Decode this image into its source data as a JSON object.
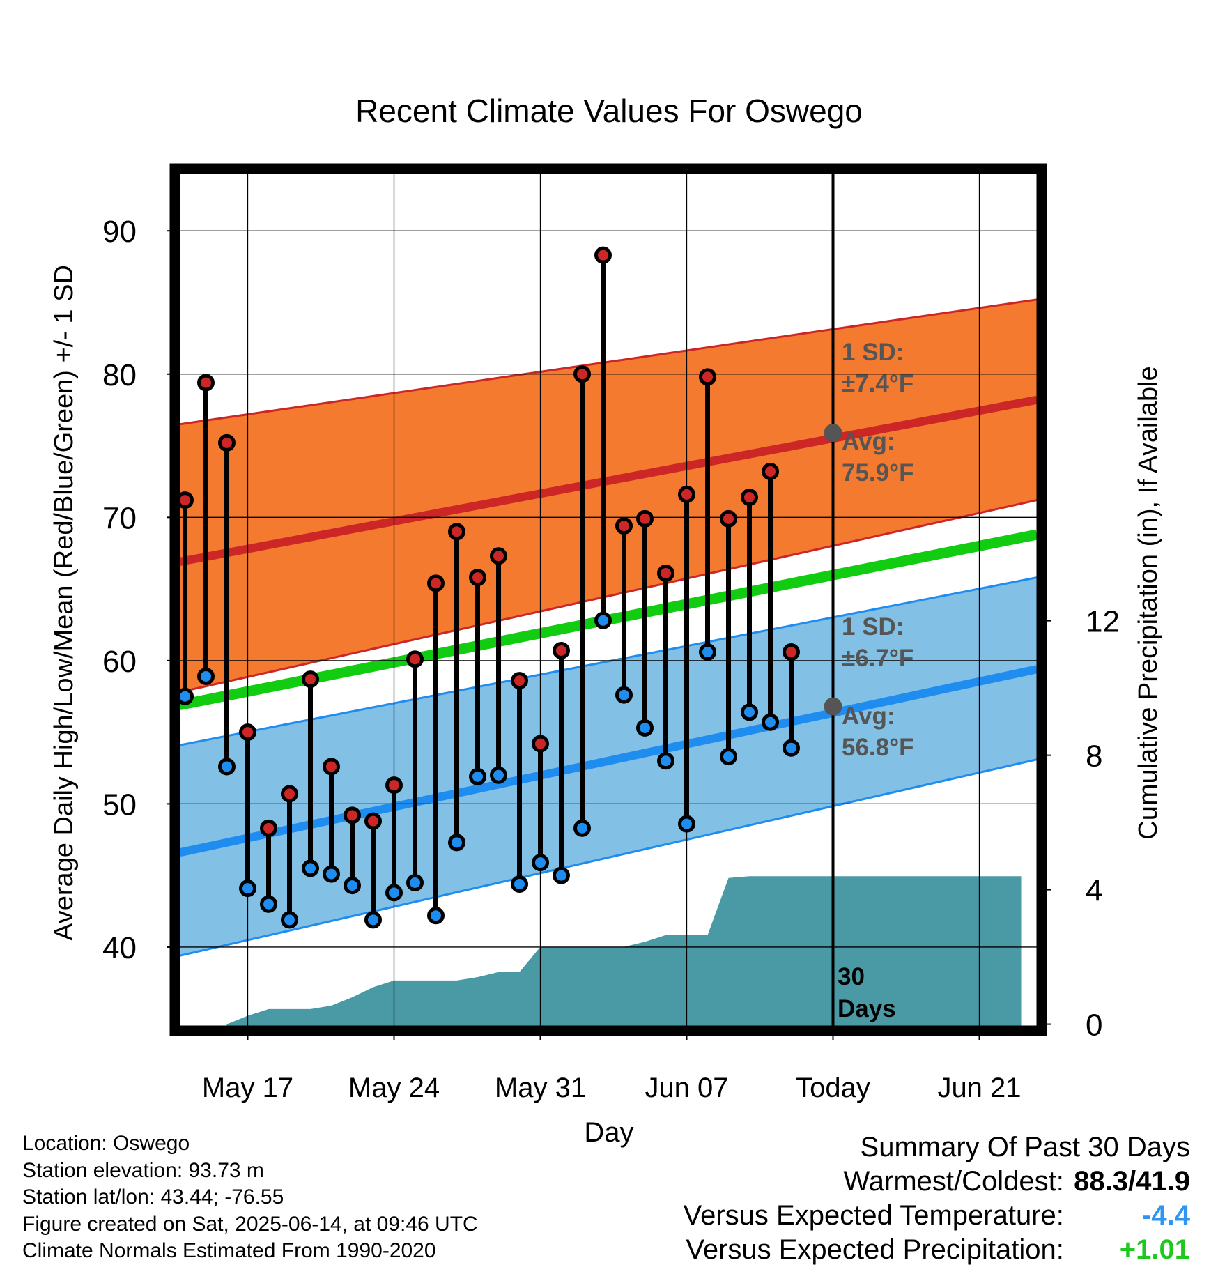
{
  "chart_data": {
    "type": "line",
    "title": "Recent Climate Values For Oswego",
    "xlabel": "Day",
    "ylabel_left": "Average Daily High/Low/Mean (Red/Blue/Green) +/- 1 SD",
    "ylabel_right": "Cumulative Precipitation (in), If Available",
    "x_ticks": [
      {
        "date": "2025-05-17",
        "label": "May 17"
      },
      {
        "date": "2025-05-24",
        "label": "May 24"
      },
      {
        "date": "2025-05-31",
        "label": "May 31"
      },
      {
        "date": "2025-06-07",
        "label": "Jun 07"
      },
      {
        "date": "2025-06-14",
        "label": "Today"
      },
      {
        "date": "2025-06-21",
        "label": "Jun 21"
      }
    ],
    "x_range": [
      "2025-05-13T18:00",
      "2025-06-23T18:00"
    ],
    "ylim_left": [
      34.5,
      94
    ],
    "left_ticks": [
      40,
      50,
      60,
      70,
      80,
      90
    ],
    "ylim_right": [
      -0.05,
      25.3
    ],
    "right_ticks": [
      0,
      4,
      8,
      12
    ],
    "grid": true,
    "observed": {
      "dates": [
        "2025-05-14",
        "2025-05-15",
        "2025-05-16",
        "2025-05-17",
        "2025-05-18",
        "2025-05-19",
        "2025-05-20",
        "2025-05-21",
        "2025-05-22",
        "2025-05-23",
        "2025-05-24",
        "2025-05-25",
        "2025-05-26",
        "2025-05-27",
        "2025-05-28",
        "2025-05-29",
        "2025-05-30",
        "2025-05-31",
        "2025-06-01",
        "2025-06-02",
        "2025-06-03",
        "2025-06-04",
        "2025-06-05",
        "2025-06-06",
        "2025-06-07",
        "2025-06-08",
        "2025-06-09",
        "2025-06-10",
        "2025-06-11",
        "2025-06-12",
        "2025-06-13"
      ],
      "high": [
        71.2,
        79.4,
        75.2,
        55.0,
        48.3,
        50.7,
        58.7,
        52.6,
        49.2,
        48.8,
        51.3,
        60.1,
        65.4,
        69.0,
        65.8,
        67.3,
        58.6,
        54.2,
        60.7,
        80.0,
        88.3,
        69.4,
        69.9,
        66.1,
        71.6,
        79.8,
        69.9,
        71.4,
        73.2,
        60.6,
        null
      ],
      "low": [
        57.5,
        58.9,
        52.6,
        44.1,
        43.0,
        41.9,
        45.5,
        45.1,
        44.3,
        41.9,
        43.8,
        44.5,
        42.2,
        47.3,
        51.9,
        52.0,
        44.4,
        45.9,
        45.0,
        48.3,
        62.8,
        57.6,
        55.3,
        53.0,
        48.6,
        60.6,
        53.3,
        56.4,
        55.7,
        53.9,
        null
      ]
    },
    "normals": {
      "dates": [
        "2025-05-13T18:00",
        "2025-06-23T18:00"
      ],
      "high_avg": [
        66.9,
        78.2
      ],
      "high_sd_upper": [
        76.5,
        85.2
      ],
      "high_sd_lower": [
        57.8,
        71.2
      ],
      "mean_avg": [
        56.9,
        68.8
      ],
      "low_avg": [
        46.6,
        59.4
      ],
      "low_sd_upper": [
        54.1,
        65.8
      ],
      "low_sd_lower": [
        39.4,
        53.1
      ]
    },
    "precipitation": {
      "dates": [
        "2025-05-16",
        "2025-05-17",
        "2025-05-18",
        "2025-05-19",
        "2025-05-20",
        "2025-05-21",
        "2025-05-22",
        "2025-05-23",
        "2025-05-24",
        "2025-05-25",
        "2025-05-26",
        "2025-05-27",
        "2025-05-28",
        "2025-05-29",
        "2025-05-30",
        "2025-05-31",
        "2025-06-01",
        "2025-06-02",
        "2025-06-03",
        "2025-06-04",
        "2025-06-05",
        "2025-06-06",
        "2025-06-07",
        "2025-06-08",
        "2025-06-09",
        "2025-06-10",
        "2025-06-14",
        "2025-06-23"
      ],
      "cumulative": [
        0.0,
        0.25,
        0.45,
        0.45,
        0.45,
        0.55,
        0.8,
        1.1,
        1.3,
        1.3,
        1.3,
        1.3,
        1.4,
        1.55,
        1.55,
        2.3,
        2.3,
        2.3,
        2.3,
        2.3,
        2.45,
        2.65,
        2.65,
        2.65,
        4.35,
        4.4,
        4.4,
        4.4
      ],
      "color": "#4a9aa5"
    },
    "annotations": {
      "high_sd_line1": "1 SD:",
      "high_sd_line2": "±7.4°F",
      "high_avg_line1": "Avg:",
      "high_avg_line2": "75.9°F",
      "low_sd_line1": "1 SD:",
      "low_sd_line2": "±6.7°F",
      "low_avg_line1": "Avg:",
      "low_avg_line2": "56.8°F",
      "today_avg_high": 75.9,
      "today_avg_low": 56.8,
      "days_line1": "30",
      "days_line2": "Days"
    },
    "colors": {
      "high_band": "#f47a30",
      "high_line": "#cc2626",
      "low_band": "#82c0e6",
      "low_line": "#1f8cf0",
      "mean_line": "#12cc12",
      "high_marker": "#cc2626",
      "low_marker": "#1f8cf0",
      "annotation_text": "#555555",
      "today_marker": "#555555"
    }
  },
  "footer": {
    "location": "Location: Oswego",
    "elevation": "Station elevation: 93.73 m",
    "latlon": "Station lat/lon: 43.44; -76.55",
    "created": "Figure created on Sat, 2025-06-14, at 09:46 UTC",
    "normals": "Climate Normals Estimated From 1990-2020"
  },
  "summary": {
    "title": "Summary Of Past 30 Days",
    "warm_cold_label": "Warmest/Coldest:",
    "warm_cold_value": "88.3/41.9",
    "temp_label": "Versus Expected Temperature:",
    "temp_value": "-4.4",
    "temp_color": "#2f95f0",
    "precip_label": "Versus Expected Precipitation:",
    "precip_value": "+1.01",
    "precip_color": "#1ec81e"
  }
}
